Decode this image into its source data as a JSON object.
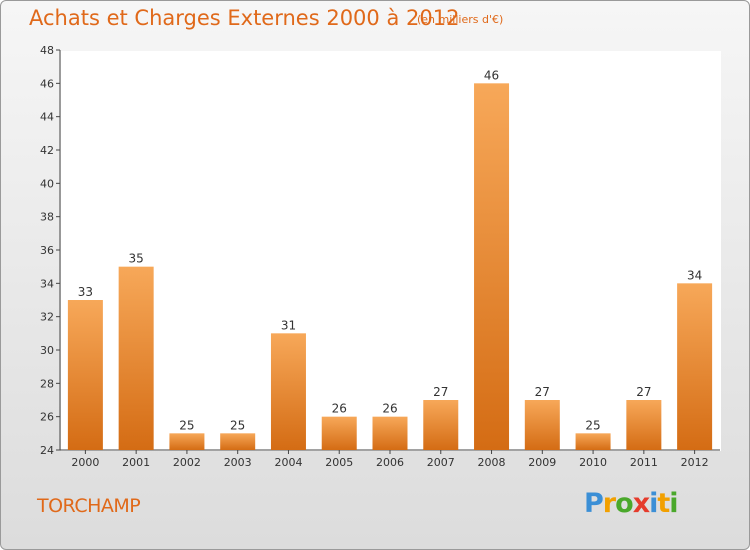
{
  "header": {
    "title": "Achats et Charges Externes 2000 à 2012",
    "unit": "(en milliers d'€)"
  },
  "footer": {
    "commune": "TORCHAMP",
    "logo_letters": [
      "P",
      "r",
      "o",
      "x",
      "i",
      "t",
      "i"
    ],
    "logo_colors": [
      "#3b8fd6",
      "#f2a000",
      "#4aa82b",
      "#e53b2c",
      "#3b8fd6",
      "#f2a000",
      "#4aa82b"
    ]
  },
  "chart_data": {
    "type": "bar",
    "title": "Achats et Charges Externes 2000 à 2012",
    "subtitle": "(en milliers d'€)",
    "categories": [
      "2000",
      "2001",
      "2002",
      "2003",
      "2004",
      "2005",
      "2006",
      "2007",
      "2008",
      "2009",
      "2010",
      "2011",
      "2012"
    ],
    "values": [
      33,
      35,
      25,
      25,
      31,
      26,
      26,
      27,
      46,
      27,
      25,
      27,
      34
    ],
    "ylim": [
      24,
      48
    ],
    "yticks": [
      24,
      26,
      28,
      30,
      32,
      34,
      36,
      38,
      40,
      42,
      44,
      46,
      48
    ],
    "grid": false,
    "bar_color_top": "#f7a859",
    "bar_color_bottom": "#d46c14",
    "text_color": "#e0691a"
  }
}
